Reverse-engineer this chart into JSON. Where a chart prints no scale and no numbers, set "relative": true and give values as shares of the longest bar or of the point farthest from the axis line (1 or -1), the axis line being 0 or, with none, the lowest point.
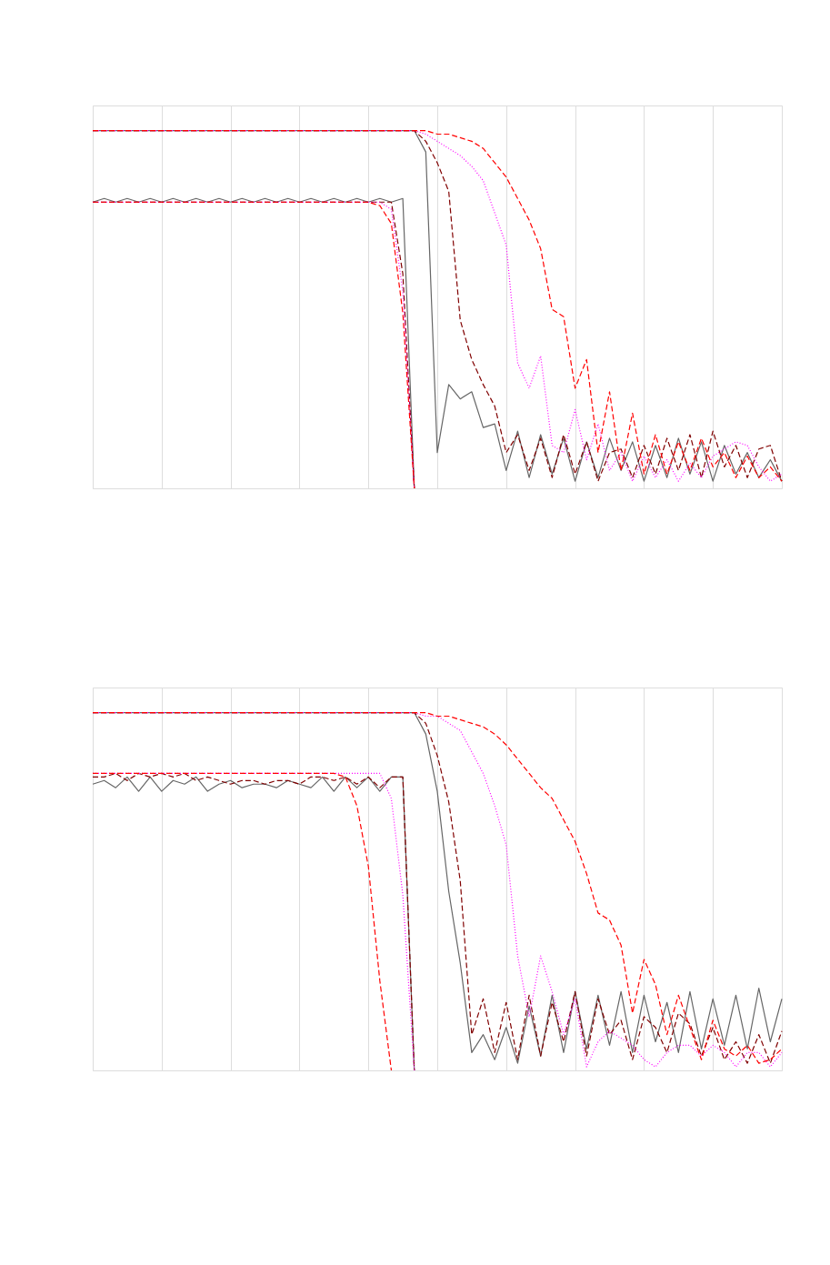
{
  "chart_data": [
    {
      "type": "line",
      "relative": true,
      "grid": "x",
      "categories": [
        null,
        null,
        null,
        null,
        null,
        null,
        null,
        null,
        null,
        null,
        null,
        null,
        null,
        null,
        null,
        null,
        null,
        null,
        null,
        null,
        null,
        null,
        null,
        null,
        null,
        null,
        null,
        null,
        null,
        null,
        null,
        null,
        null,
        null,
        null,
        null,
        null,
        null,
        null,
        null,
        null,
        null,
        null,
        null,
        null,
        null,
        null,
        null,
        null,
        null,
        null,
        null,
        null,
        null,
        null,
        null,
        null,
        null,
        null,
        null,
        null
      ],
      "series": [
        {
          "color": "#666666",
          "line_style": "solid",
          "values": [
            1,
            1,
            1,
            1,
            1,
            1,
            1,
            1,
            1,
            1,
            1,
            1,
            1,
            1,
            1,
            1,
            1,
            1,
            1,
            1,
            1,
            1,
            1,
            1,
            1,
            1,
            1,
            1,
            1,
            0.94,
            0.1,
            0.29,
            0.25,
            0.27,
            0.17,
            0.18,
            0.05,
            0.16,
            0.03,
            0.15,
            0.04,
            0.14,
            0.02,
            0.13,
            0.03,
            0.14,
            0.05,
            0.13,
            0.02,
            0.12,
            0.03,
            0.14,
            0.04,
            0.13,
            0.02,
            0.12,
            0.04,
            0.1,
            0.03,
            0.08,
            0.02
          ]
        },
        {
          "color": "#666666",
          "line_style": "solid",
          "values": [
            0.8,
            0.81,
            0.8,
            0.81,
            0.8,
            0.81,
            0.8,
            0.81,
            0.8,
            0.81,
            0.8,
            0.81,
            0.8,
            0.81,
            0.8,
            0.81,
            0.8,
            0.81,
            0.8,
            0.81,
            0.8,
            0.81,
            0.8,
            0.81,
            0.8,
            0.81,
            0.8,
            0.81,
            0,
            null,
            null,
            null,
            null,
            null,
            null,
            null,
            null,
            null,
            null,
            null,
            null,
            null,
            null,
            null,
            null,
            null,
            null,
            null,
            null,
            null,
            null,
            null,
            null,
            null,
            null,
            null,
            null,
            null,
            null,
            null,
            null
          ]
        },
        {
          "color": "#800000",
          "line_style": "dashed",
          "values": [
            1,
            1,
            1,
            1,
            1,
            1,
            1,
            1,
            1,
            1,
            1,
            1,
            1,
            1,
            1,
            1,
            1,
            1,
            1,
            1,
            1,
            1,
            1,
            1,
            1,
            1,
            1,
            1,
            1,
            0.97,
            0.91,
            0.83,
            0.47,
            0.36,
            0.29,
            0.23,
            0.1,
            0.15,
            0.05,
            0.14,
            0.03,
            0.15,
            0.04,
            0.13,
            0.02,
            0.1,
            0.11,
            0.03,
            0.12,
            0.04,
            0.14,
            0.05,
            0.15,
            0.03,
            0.16,
            0.06,
            0.12,
            0.03,
            0.11,
            0.12,
            0.02
          ]
        },
        {
          "color": "#800000",
          "line_style": "dashed",
          "values": [
            0.8,
            0.8,
            0.8,
            0.8,
            0.8,
            0.8,
            0.8,
            0.8,
            0.8,
            0.8,
            0.8,
            0.8,
            0.8,
            0.8,
            0.8,
            0.8,
            0.8,
            0.8,
            0.8,
            0.8,
            0.8,
            0.8,
            0.8,
            0.8,
            0.8,
            0.8,
            0.8,
            0.6,
            0,
            null,
            null,
            null,
            null,
            null,
            null,
            null,
            null,
            null,
            null,
            null,
            null,
            null,
            null,
            null,
            null,
            null,
            null,
            null,
            null,
            null,
            null,
            null,
            null,
            null,
            null,
            null,
            null,
            null,
            null,
            null,
            null
          ]
        },
        {
          "color": "#ff00ff",
          "line_style": "dotted",
          "values": [
            1,
            1,
            1,
            1,
            1,
            1,
            1,
            1,
            1,
            1,
            1,
            1,
            1,
            1,
            1,
            1,
            1,
            1,
            1,
            1,
            1,
            1,
            1,
            1,
            1,
            1,
            1,
            1,
            1,
            0.99,
            0.97,
            0.95,
            0.93,
            0.9,
            0.86,
            0.77,
            0.68,
            0.35,
            0.28,
            0.37,
            0.12,
            0.1,
            0.22,
            0.08,
            0.18,
            0.05,
            0.1,
            0.02,
            0.09,
            0.03,
            0.08,
            0.02,
            0.07,
            0.03,
            0.09,
            0.11,
            0.13,
            0.12,
            0.06,
            0.02,
            0.04
          ]
        },
        {
          "color": "#ff00ff",
          "line_style": "dotted",
          "values": [
            0.8,
            0.8,
            0.8,
            0.8,
            0.8,
            0.8,
            0.8,
            0.8,
            0.8,
            0.8,
            0.8,
            0.8,
            0.8,
            0.8,
            0.8,
            0.8,
            0.8,
            0.8,
            0.8,
            0.8,
            0.8,
            0.8,
            0.8,
            0.8,
            0.8,
            0.8,
            0.78,
            0.55,
            0,
            null,
            null,
            null,
            null,
            null,
            null,
            null,
            null,
            null,
            null,
            null,
            null,
            null,
            null,
            null,
            null,
            null,
            null,
            null,
            null,
            null,
            null,
            null,
            null,
            null,
            null,
            null,
            null,
            null,
            null,
            null,
            null
          ]
        },
        {
          "color": "#ff0000",
          "line_style": "dashed",
          "values": [
            1,
            1,
            1,
            1,
            1,
            1,
            1,
            1,
            1,
            1,
            1,
            1,
            1,
            1,
            1,
            1,
            1,
            1,
            1,
            1,
            1,
            1,
            1,
            1,
            1,
            1,
            1,
            1,
            1,
            1,
            0.99,
            0.99,
            0.98,
            0.97,
            0.95,
            0.91,
            0.87,
            0.81,
            0.75,
            0.67,
            0.5,
            0.48,
            0.28,
            0.36,
            0.1,
            0.27,
            0.05,
            0.21,
            0.04,
            0.15,
            0.04,
            0.13,
            0.05,
            0.14,
            0.06,
            0.1,
            0.03,
            0.09,
            0.03,
            0.06,
            0.02
          ]
        },
        {
          "color": "#ff0000",
          "line_style": "dashed",
          "values": [
            0.8,
            0.8,
            0.8,
            0.8,
            0.8,
            0.8,
            0.8,
            0.8,
            0.8,
            0.8,
            0.8,
            0.8,
            0.8,
            0.8,
            0.8,
            0.8,
            0.8,
            0.8,
            0.8,
            0.8,
            0.8,
            0.8,
            0.8,
            0.8,
            0.8,
            0.79,
            0.74,
            0.49,
            0,
            null,
            null,
            null,
            null,
            null,
            null,
            null,
            null,
            null,
            null,
            null,
            null,
            null,
            null,
            null,
            null,
            null,
            null,
            null,
            null,
            null,
            null,
            null,
            null,
            null,
            null,
            null,
            null,
            null,
            null,
            null,
            null
          ]
        }
      ]
    },
    {
      "type": "line",
      "relative": true,
      "grid": "x",
      "categories": [
        null,
        null,
        null,
        null,
        null,
        null,
        null,
        null,
        null,
        null,
        null,
        null,
        null,
        null,
        null,
        null,
        null,
        null,
        null,
        null,
        null,
        null,
        null,
        null,
        null,
        null,
        null,
        null,
        null,
        null,
        null,
        null,
        null,
        null,
        null,
        null,
        null,
        null,
        null,
        null,
        null,
        null,
        null,
        null,
        null,
        null,
        null,
        null,
        null,
        null,
        null,
        null,
        null,
        null,
        null,
        null,
        null,
        null,
        null,
        null,
        null
      ],
      "series": [
        {
          "color": "#666666",
          "line_style": "solid",
          "values": [
            1,
            1,
            1,
            1,
            1,
            1,
            1,
            1,
            1,
            1,
            1,
            1,
            1,
            1,
            1,
            1,
            1,
            1,
            1,
            1,
            1,
            1,
            1,
            1,
            1,
            1,
            1,
            1,
            1,
            0.94,
            0.78,
            0.5,
            0.3,
            0.05,
            0.1,
            0.03,
            0.12,
            0.02,
            0.18,
            0.04,
            0.21,
            0.05,
            0.22,
            0.06,
            0.21,
            0.07,
            0.22,
            0.05,
            0.21,
            0.08,
            0.19,
            0.05,
            0.22,
            0.06,
            0.2,
            0.07,
            0.21,
            0.06,
            0.23,
            0.08,
            0.2
          ]
        },
        {
          "color": "#666666",
          "line_style": "solid",
          "values": [
            0.8,
            0.81,
            0.79,
            0.82,
            0.78,
            0.82,
            0.78,
            0.81,
            0.8,
            0.82,
            0.78,
            0.8,
            0.81,
            0.79,
            0.8,
            0.8,
            0.79,
            0.81,
            0.8,
            0.79,
            0.82,
            0.78,
            0.82,
            0.79,
            0.82,
            0.78,
            0.82,
            0.82,
            0,
            null,
            null,
            null,
            null,
            null,
            null,
            null,
            null,
            null,
            null,
            null,
            null,
            null,
            null,
            null,
            null,
            null,
            null,
            null,
            null,
            null,
            null,
            null,
            null,
            null,
            null,
            null,
            null,
            null,
            null,
            null,
            null
          ]
        },
        {
          "color": "#800000",
          "line_style": "dashed",
          "values": [
            1,
            1,
            1,
            1,
            1,
            1,
            1,
            1,
            1,
            1,
            1,
            1,
            1,
            1,
            1,
            1,
            1,
            1,
            1,
            1,
            1,
            1,
            1,
            1,
            1,
            1,
            1,
            1,
            1,
            0.97,
            0.88,
            0.75,
            0.53,
            0.1,
            0.2,
            0.05,
            0.19,
            0.03,
            0.21,
            0.04,
            0.19,
            0.08,
            0.22,
            0.04,
            0.2,
            0.1,
            0.14,
            0.03,
            0.15,
            0.12,
            0.05,
            0.16,
            0.13,
            0.04,
            0.12,
            0.03,
            0.08,
            0.02,
            0.1,
            0.02,
            0.11
          ]
        },
        {
          "color": "#800000",
          "line_style": "dashed",
          "values": [
            0.82,
            0.82,
            0.83,
            0.81,
            0.83,
            0.82,
            0.83,
            0.82,
            0.83,
            0.81,
            0.82,
            0.81,
            0.8,
            0.81,
            0.81,
            0.8,
            0.81,
            0.81,
            0.8,
            0.82,
            0.82,
            0.81,
            0.82,
            0.8,
            0.82,
            0.79,
            0.82,
            0.82,
            0,
            null,
            null,
            null,
            null,
            null,
            null,
            null,
            null,
            null,
            null,
            null,
            null,
            null,
            null,
            null,
            null,
            null,
            null,
            null,
            null,
            null,
            null,
            null,
            null,
            null,
            null,
            null,
            null,
            null,
            null,
            null,
            null
          ]
        },
        {
          "color": "#ff00ff",
          "line_style": "dotted",
          "values": [
            1,
            1,
            1,
            1,
            1,
            1,
            1,
            1,
            1,
            1,
            1,
            1,
            1,
            1,
            1,
            1,
            1,
            1,
            1,
            1,
            1,
            1,
            1,
            1,
            1,
            1,
            1,
            1,
            1,
            0.99,
            0.99,
            0.97,
            0.95,
            0.89,
            0.83,
            0.74,
            0.63,
            0.32,
            0.15,
            0.32,
            0.22,
            0.1,
            0.2,
            0.01,
            0.08,
            0.11,
            0.09,
            0.07,
            0.03,
            0.01,
            0.05,
            0.07,
            0.07,
            0.04,
            0.07,
            0.05,
            0.01,
            0.05,
            0.05,
            0.01,
            0.05
          ]
        },
        {
          "color": "#ff00ff",
          "line_style": "dotted",
          "values": [
            0.83,
            0.83,
            0.83,
            0.83,
            0.83,
            0.83,
            0.83,
            0.83,
            0.83,
            0.83,
            0.83,
            0.83,
            0.83,
            0.83,
            0.83,
            0.83,
            0.83,
            0.83,
            0.83,
            0.83,
            0.83,
            0.83,
            0.83,
            0.83,
            0.83,
            0.83,
            0.76,
            0.49,
            0,
            null,
            null,
            null,
            null,
            null,
            null,
            null,
            null,
            null,
            null,
            null,
            null,
            null,
            null,
            null,
            null,
            null,
            null,
            null,
            null,
            null,
            null,
            null,
            null,
            null,
            null,
            null,
            null,
            null,
            null,
            null,
            null
          ]
        },
        {
          "color": "#ff0000",
          "line_style": "dashed",
          "values": [
            1,
            1,
            1,
            1,
            1,
            1,
            1,
            1,
            1,
            1,
            1,
            1,
            1,
            1,
            1,
            1,
            1,
            1,
            1,
            1,
            1,
            1,
            1,
            1,
            1,
            1,
            1,
            1,
            1,
            1,
            0.99,
            0.99,
            0.98,
            0.97,
            0.96,
            0.94,
            0.91,
            0.87,
            0.83,
            0.79,
            0.76,
            0.7,
            0.64,
            0.55,
            0.44,
            0.42,
            0.35,
            0.16,
            0.31,
            0.24,
            0.1,
            0.21,
            0.12,
            0.03,
            0.14,
            0.06,
            0.04,
            0.07,
            0.02,
            0.03,
            0.06
          ]
        },
        {
          "color": "#ff0000",
          "line_style": "dashed",
          "values": [
            0.83,
            0.83,
            0.83,
            0.83,
            0.83,
            0.83,
            0.83,
            0.83,
            0.83,
            0.83,
            0.83,
            0.83,
            0.83,
            0.83,
            0.83,
            0.83,
            0.83,
            0.83,
            0.83,
            0.83,
            0.83,
            0.83,
            0.82,
            0.74,
            0.57,
            0.25,
            0,
            null,
            null,
            null,
            null,
            null,
            null,
            null,
            null,
            null,
            null,
            null,
            null,
            null,
            null,
            null,
            null,
            null,
            null,
            null,
            null,
            null,
            null,
            null,
            null,
            null,
            null,
            null,
            null,
            null,
            null,
            null,
            null,
            null,
            null
          ]
        }
      ]
    }
  ]
}
